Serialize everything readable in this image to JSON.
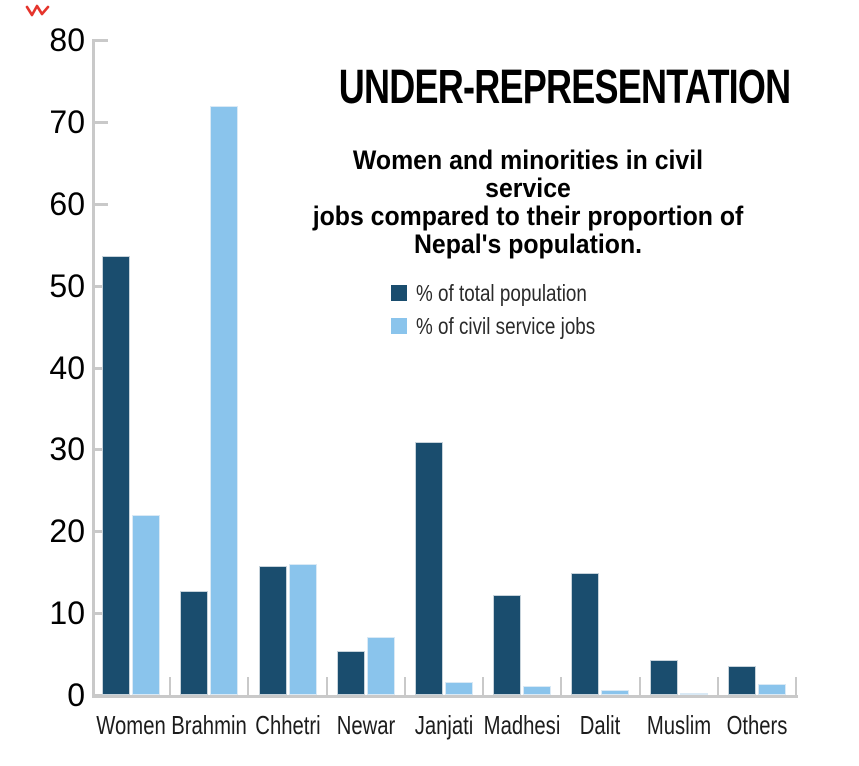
{
  "page": {
    "background": "#ffffff"
  },
  "annotation_mark": {
    "color": "#e5342c"
  },
  "legend": {
    "item1": "% of total population",
    "item2": "% of civil service jobs"
  },
  "chart_data": {
    "type": "bar",
    "title": "UNDER-REPRESENTATION",
    "subtitle_lines": [
      "Women and minorities in civil service",
      "jobs compared to their proportion of",
      "Nepal's population."
    ],
    "categories": [
      "Women",
      "Brahmin",
      "Chhetri",
      "Newar",
      "Janjati",
      "Madhesi",
      "Dalit",
      "Muslim",
      "Others"
    ],
    "series": [
      {
        "name": "% of total population",
        "color": "#1a4d6e",
        "values": [
          53.6,
          12.7,
          15.8,
          5.4,
          30.9,
          12.2,
          14.9,
          4.3,
          3.5
        ]
      },
      {
        "name": "% of civil service jobs",
        "color": "#8ac4ec",
        "values": [
          22,
          72,
          16,
          7.1,
          1.6,
          1.1,
          0.6,
          0.2,
          1.3
        ]
      }
    ],
    "xlabel": "",
    "ylabel": "",
    "ylim": [
      0,
      80
    ],
    "yticks": [
      0,
      10,
      20,
      30,
      40,
      50,
      60,
      70,
      80
    ],
    "grid": false,
    "legend_position": "inside upper middle",
    "axis_color": "#c9c9c9"
  }
}
